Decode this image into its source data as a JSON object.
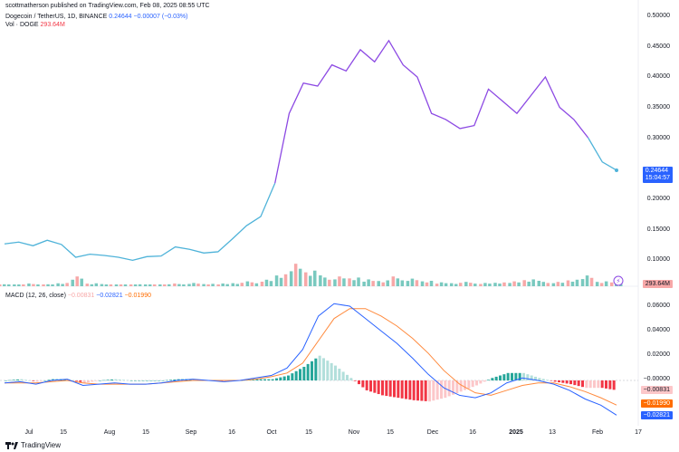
{
  "publish_line": "scottmatherson published on TradingView.com, Feb 08, 2025 08:55 UTC",
  "symbol": {
    "name": "Dogecoin / TetherUS, 1D, BINANCE",
    "price": "0.24644",
    "change": "−0.00007 (−0.03%)"
  },
  "volume": {
    "label": "Vol · DOGE",
    "value": "293.64M"
  },
  "macd": {
    "label": "MACD (12, 26, close)",
    "hist": "−0.00831",
    "macd": "−0.02821",
    "signal": "−0.01990"
  },
  "price_axis": [
    "0.50000",
    "0.45000",
    "0.40000",
    "0.35000",
    "0.30000",
    "0.20000",
    "0.15000",
    "0.10000"
  ],
  "price_tag": {
    "value": "0.24644",
    "timer": "15:04:57"
  },
  "vol_tag": "293.64M",
  "macd_axis": [
    "0.06000",
    "0.04000",
    "0.02000",
    "−0.00000"
  ],
  "macd_tags": {
    "hist": "−0.00831",
    "signal": "−0.01990",
    "macd": "−0.02821"
  },
  "time_axis": [
    "Jul",
    "15",
    "Aug",
    "15",
    "Sep",
    "16",
    "Oct",
    "15",
    "Nov",
    "15",
    "Dec",
    "16",
    "2025",
    "13",
    "Feb",
    "17"
  ],
  "brand": "TradingView",
  "colors": {
    "line_old": "#4fb3d9",
    "line_new": "#8c49e3",
    "vol_up": "#79c9bf",
    "vol_down": "#f7a8a8",
    "macd": "#2962ff",
    "signal": "#ff8a3d",
    "hist_up_strong": "#26a69a",
    "hist_up_weak": "#b2dfdb",
    "hist_down_strong": "#f23645",
    "hist_down_weak": "#fcc7c9"
  },
  "chart_data": [
    {
      "type": "line",
      "title": "Dogecoin / TetherUS, 1D, BINANCE",
      "ylim": [
        0.08,
        0.5
      ],
      "x": [
        "Jul 1",
        "Jul 8",
        "Jul 15",
        "Jul 22",
        "Jul 29",
        "Aug 5",
        "Aug 12",
        "Aug 19",
        "Aug 26",
        "Sep 2",
        "Sep 9",
        "Sep 16",
        "Sep 23",
        "Sep 30",
        "Oct 7",
        "Oct 14",
        "Oct 21",
        "Oct 28",
        "Nov 4",
        "Nov 8",
        "Nov 11",
        "Nov 12",
        "Nov 16",
        "Nov 21",
        "Nov 25",
        "Dec 1",
        "Dec 5",
        "Dec 8",
        "Dec 12",
        "Dec 16",
        "Dec 20",
        "Dec 24",
        "Dec 28",
        "Jan 1",
        "Jan 5",
        "Jan 9",
        "Jan 13",
        "Jan 17",
        "Jan 21",
        "Jan 25",
        "Jan 29",
        "Feb 2",
        "Feb 5",
        "Feb 8"
      ],
      "series": [
        {
          "values": [
            0.125,
            0.128,
            0.122,
            0.131,
            0.124,
            0.103,
            0.108,
            0.106,
            0.103,
            0.098,
            0.104,
            0.105,
            0.12,
            0.116,
            0.11,
            0.112,
            0.133,
            0.155,
            0.17,
            0.225,
            0.34,
            0.39,
            0.385,
            0.42,
            0.41,
            0.445,
            0.425,
            0.46,
            0.42,
            0.4,
            0.34,
            0.33,
            0.315,
            0.32,
            0.38,
            0.36,
            0.34,
            0.37,
            0.4,
            0.35,
            0.33,
            0.3,
            0.26,
            0.24644
          ]
        }
      ]
    },
    {
      "type": "bar",
      "title": "Vol · DOGE",
      "note": "daily volume bars, relative height 0-1",
      "series": [
        {
          "values": [
            0.2,
            0.15,
            0.25,
            0.18,
            0.3,
            1.0,
            0.3,
            0.2,
            0.15,
            0.18,
            0.12,
            0.2,
            0.25,
            0.3,
            0.22,
            0.28,
            0.35,
            0.45,
            0.6,
            1.1,
            2.3,
            1.6,
            1.0,
            0.9,
            0.8,
            0.7,
            0.6,
            0.9,
            0.7,
            0.5,
            0.4,
            0.35,
            0.4,
            0.3,
            0.35,
            0.5,
            0.7,
            0.5,
            0.4,
            0.6,
            1.1,
            0.5,
            0.35
          ]
        }
      ]
    },
    {
      "type": "line",
      "title": "MACD (12, 26, close)",
      "ylim": [
        -0.03,
        0.065
      ],
      "series": [
        {
          "name": "MACD",
          "values": [
            -0.002,
            -0.001,
            -0.003,
            0.0,
            0.001,
            -0.004,
            -0.003,
            -0.002,
            -0.003,
            -0.003,
            -0.002,
            0.0,
            0.001,
            0.0,
            -0.001,
            0.0,
            0.002,
            0.004,
            0.01,
            0.025,
            0.052,
            0.062,
            0.06,
            0.05,
            0.04,
            0.03,
            0.018,
            0.005,
            -0.006,
            -0.012,
            -0.014,
            -0.01,
            -0.002,
            0.002,
            0.0,
            -0.003,
            -0.008,
            -0.015,
            -0.02,
            -0.028
          ]
        },
        {
          "name": "Signal",
          "values": [
            -0.002,
            -0.002,
            -0.002,
            -0.001,
            0.0,
            -0.002,
            -0.003,
            -0.003,
            -0.003,
            -0.003,
            -0.002,
            -0.001,
            0.0,
            0.0,
            0.0,
            0.0,
            0.001,
            0.003,
            0.006,
            0.014,
            0.032,
            0.05,
            0.058,
            0.058,
            0.052,
            0.044,
            0.034,
            0.022,
            0.008,
            -0.003,
            -0.01,
            -0.012,
            -0.008,
            -0.004,
            -0.002,
            -0.002,
            -0.005,
            -0.009,
            -0.014,
            -0.0199
          ]
        }
      ]
    }
  ]
}
